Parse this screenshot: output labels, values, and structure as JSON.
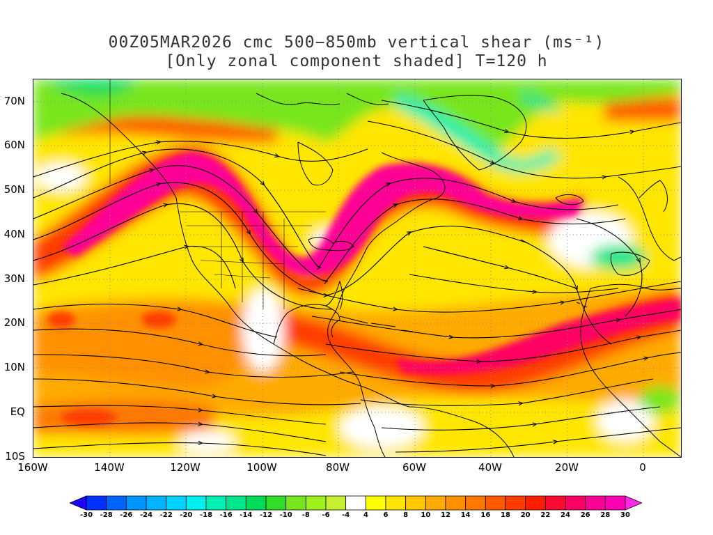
{
  "title": {
    "line1": "00Z05MAR2026 cmc 500−850mb vertical shear (ms⁻¹)",
    "line2": "[Only zonal component shaded] T=120 h"
  },
  "map": {
    "lat_labels": [
      "70N",
      "60N",
      "50N",
      "40N",
      "30N",
      "20N",
      "10N",
      "EQ",
      "10S"
    ],
    "lon_labels": [
      "160W",
      "140W",
      "120W",
      "100W",
      "80W",
      "60W",
      "40W",
      "20W",
      "0"
    ],
    "lat_range": [
      -10,
      75
    ],
    "lon_range": [
      -160,
      10
    ]
  },
  "colorbar": {
    "labels": [
      "-30",
      "-28",
      "-26",
      "-24",
      "-22",
      "-20",
      "-18",
      "-16",
      "-14",
      "-12",
      "-10",
      "-8",
      "-6",
      "-4",
      "4",
      "6",
      "8",
      "10",
      "12",
      "14",
      "16",
      "18",
      "20",
      "22",
      "24",
      "26",
      "28",
      "30"
    ],
    "colors": [
      "#1e00ff",
      "#0032ff",
      "#0064ff",
      "#0096ff",
      "#00b4ff",
      "#00d2ff",
      "#00f0f0",
      "#00f0b4",
      "#00e68c",
      "#00dc5a",
      "#32dc28",
      "#78e61e",
      "#a0f01e",
      "#c8f032",
      "#ffffff",
      "#ffff00",
      "#ffe600",
      "#ffc800",
      "#ffaa00",
      "#ff9100",
      "#ff7800",
      "#ff5a00",
      "#ff3c00",
      "#ff1e00",
      "#ff0a32",
      "#ff0064",
      "#ff0096",
      "#ff00b4",
      "#ff28e6"
    ]
  }
}
